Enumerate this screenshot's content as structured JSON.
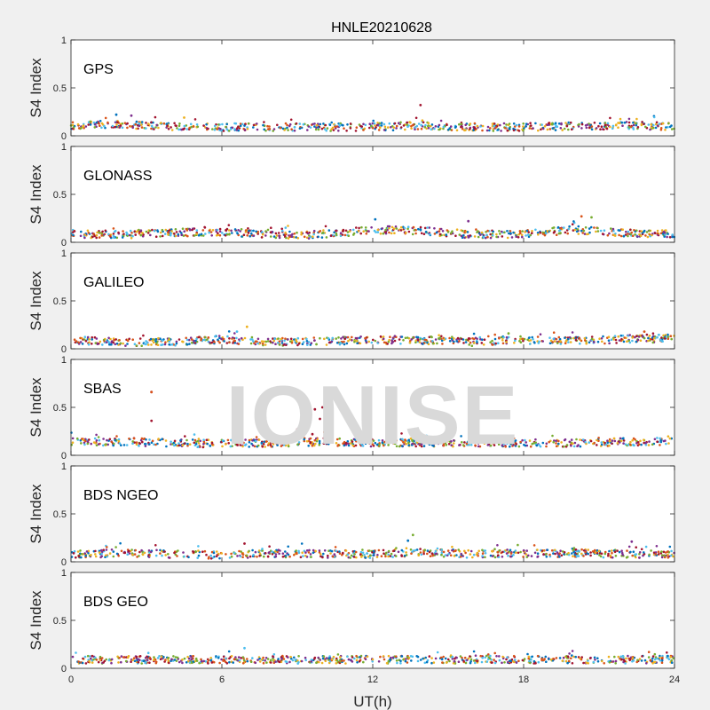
{
  "chart_data": {
    "type": "scatter",
    "title": "HNLE20210628",
    "xlabel": "UT(h)",
    "ylabel": "S4 Index",
    "xlim": [
      0,
      24
    ],
    "ylim": [
      0,
      1
    ],
    "xticks": [
      0,
      6,
      12,
      18,
      24
    ],
    "yticks": [
      0,
      0.5,
      1
    ],
    "watermark": "IONISE",
    "grid": false,
    "series_colors": [
      "#0072BD",
      "#D95319",
      "#EDB120",
      "#7E2F8E",
      "#77AC30",
      "#4DBEEE",
      "#A2142F"
    ],
    "panels": [
      {
        "label": "GPS",
        "baseline": [
          [
            0,
            0.11
          ],
          [
            2,
            0.12
          ],
          [
            4,
            0.1
          ],
          [
            6,
            0.09
          ],
          [
            8,
            0.09
          ],
          [
            10,
            0.09
          ],
          [
            12,
            0.09
          ],
          [
            14,
            0.11
          ],
          [
            16,
            0.09
          ],
          [
            18,
            0.09
          ],
          [
            20,
            0.1
          ],
          [
            22,
            0.11
          ],
          [
            24,
            0.1
          ]
        ],
        "spikes": [
          [
            1.8,
            0.22
          ],
          [
            2.4,
            0.21
          ],
          [
            13.9,
            0.32
          ],
          [
            4.5,
            0.19
          ]
        ]
      },
      {
        "label": "GLONASS",
        "baseline": [
          [
            0,
            0.09
          ],
          [
            2,
            0.08
          ],
          [
            4,
            0.1
          ],
          [
            6,
            0.11
          ],
          [
            8,
            0.08
          ],
          [
            10,
            0.08
          ],
          [
            12,
            0.13
          ],
          [
            14,
            0.12
          ],
          [
            16,
            0.08
          ],
          [
            18,
            0.09
          ],
          [
            20,
            0.13
          ],
          [
            22,
            0.1
          ],
          [
            24,
            0.09
          ]
        ],
        "spikes": [
          [
            20.3,
            0.27
          ],
          [
            20.7,
            0.26
          ],
          [
            12.1,
            0.24
          ],
          [
            15.8,
            0.22
          ]
        ]
      },
      {
        "label": "GALILEO",
        "baseline": [
          [
            0,
            0.09
          ],
          [
            2,
            0.07
          ],
          [
            4,
            0.07
          ],
          [
            6,
            0.1
          ],
          [
            8,
            0.07
          ],
          [
            10,
            0.08
          ],
          [
            12,
            0.09
          ],
          [
            14,
            0.09
          ],
          [
            16,
            0.07
          ],
          [
            18,
            0.09
          ],
          [
            20,
            0.08
          ],
          [
            22,
            0.1
          ],
          [
            24,
            0.11
          ]
        ],
        "spikes": [
          [
            7.0,
            0.23
          ],
          [
            6.6,
            0.18
          ],
          [
            22.8,
            0.18
          ],
          [
            17.4,
            0.16
          ]
        ]
      },
      {
        "label": "SBAS",
        "baseline": [
          [
            0,
            0.14
          ],
          [
            2,
            0.14
          ],
          [
            4,
            0.13
          ],
          [
            6,
            0.12
          ],
          [
            8,
            0.13
          ],
          [
            10,
            0.14
          ],
          [
            12,
            0.13
          ],
          [
            14,
            0.13
          ],
          [
            16,
            0.13
          ],
          [
            18,
            0.13
          ],
          [
            20,
            0.13
          ],
          [
            22,
            0.14
          ],
          [
            24,
            0.15
          ]
        ],
        "spikes": [
          [
            3.2,
            0.66
          ],
          [
            3.2,
            0.36
          ],
          [
            9.3,
            0.57
          ],
          [
            9.7,
            0.48
          ],
          [
            10.0,
            0.5
          ],
          [
            9.5,
            0.42
          ],
          [
            9.9,
            0.38
          ],
          [
            9.4,
            0.3
          ],
          [
            10.1,
            0.25
          ],
          [
            9.6,
            0.22
          ],
          [
            9.0,
            0.27
          ]
        ]
      },
      {
        "label": "BDS NGEO",
        "baseline": [
          [
            0,
            0.08
          ],
          [
            2,
            0.09
          ],
          [
            4,
            0.08
          ],
          [
            6,
            0.07
          ],
          [
            8,
            0.09
          ],
          [
            10,
            0.08
          ],
          [
            12,
            0.08
          ],
          [
            14,
            0.1
          ],
          [
            16,
            0.08
          ],
          [
            18,
            0.09
          ],
          [
            20,
            0.09
          ],
          [
            22,
            0.08
          ],
          [
            24,
            0.08
          ]
        ],
        "spikes": [
          [
            13.6,
            0.28
          ],
          [
            13.4,
            0.22
          ],
          [
            22.3,
            0.21
          ],
          [
            6.9,
            0.19
          ]
        ]
      },
      {
        "label": "BDS GEO",
        "baseline": [
          [
            0,
            0.09
          ],
          [
            4,
            0.09
          ],
          [
            8,
            0.09
          ],
          [
            12,
            0.09
          ],
          [
            16,
            0.09
          ],
          [
            20,
            0.09
          ],
          [
            24,
            0.09
          ]
        ],
        "spikes": [
          [
            6.9,
            0.21
          ]
        ]
      }
    ]
  }
}
